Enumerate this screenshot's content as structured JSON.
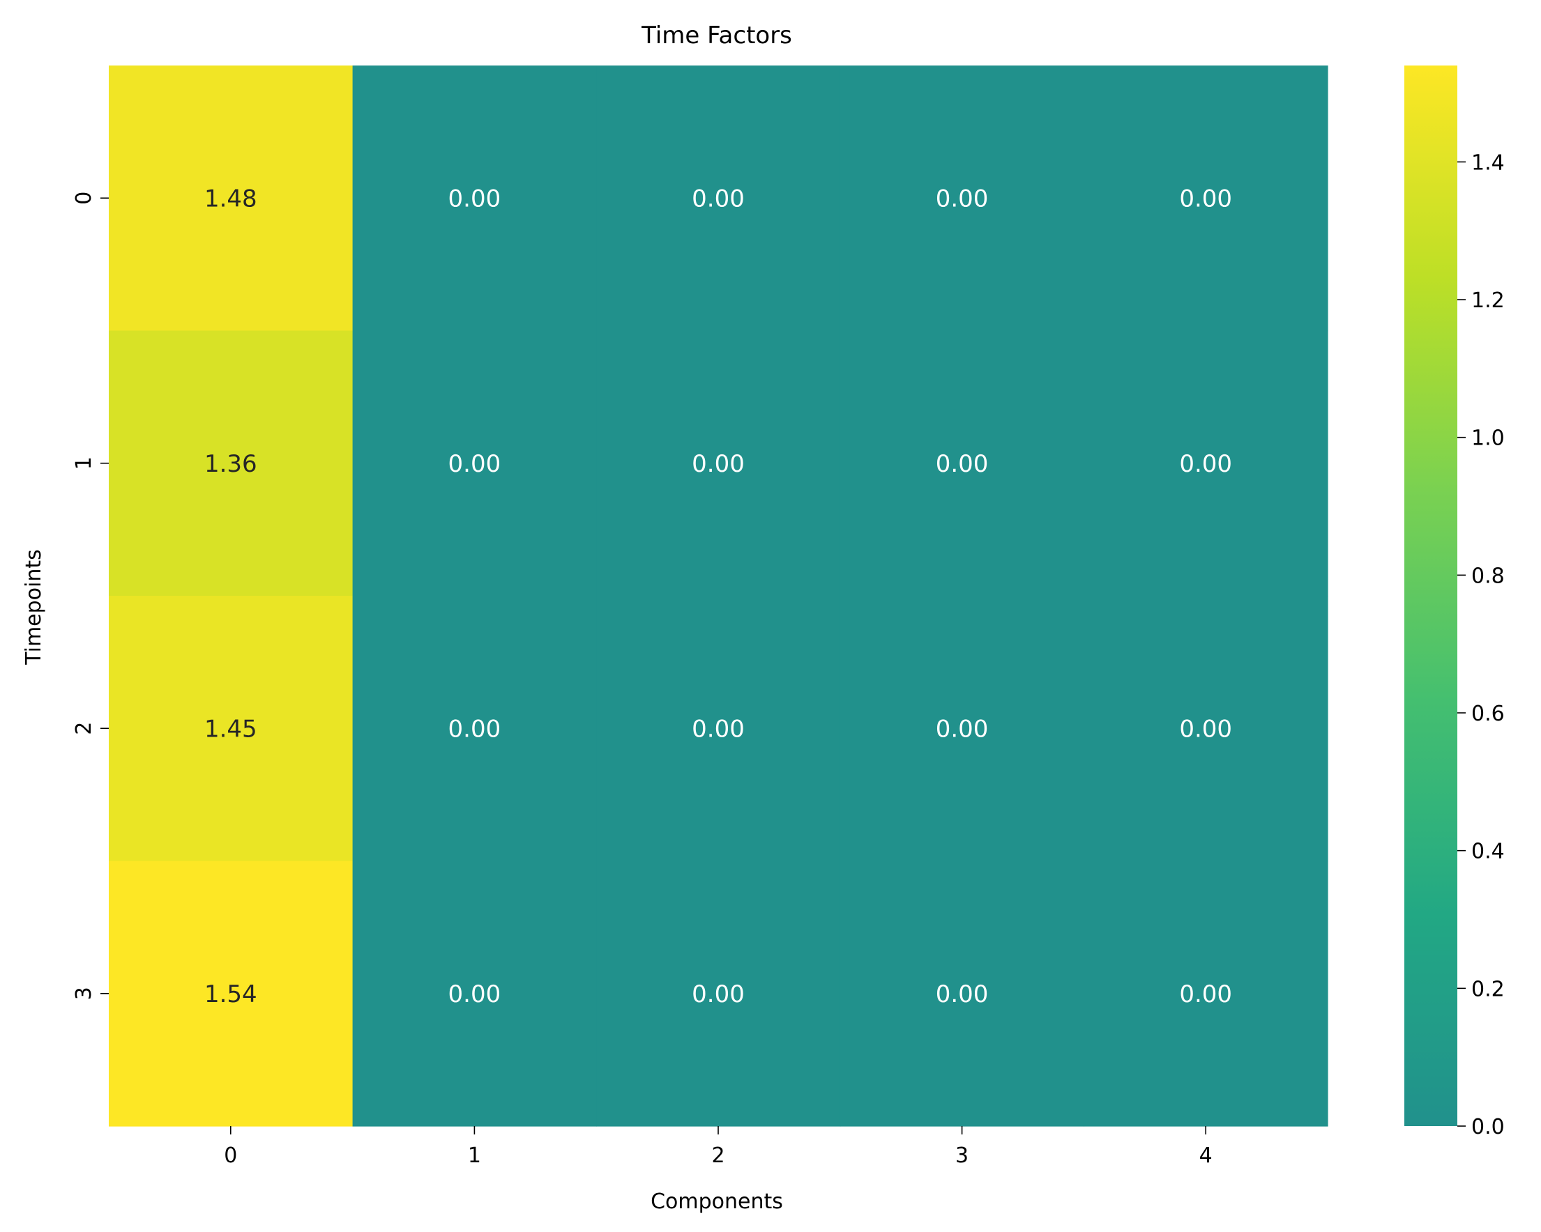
{
  "chart_data": {
    "type": "heatmap",
    "title": "Time Factors",
    "xlabel": "Components",
    "ylabel": "Timepoints",
    "x_categories": [
      "0",
      "1",
      "2",
      "3",
      "4"
    ],
    "y_categories": [
      "0",
      "1",
      "2",
      "3"
    ],
    "values": [
      [
        1.48,
        0.0,
        0.0,
        0.0,
        0.0
      ],
      [
        1.36,
        0.0,
        0.0,
        0.0,
        0.0
      ],
      [
        1.45,
        0.0,
        0.0,
        0.0,
        0.0
      ],
      [
        1.54,
        0.0,
        0.0,
        0.0,
        0.0
      ]
    ],
    "value_format_decimals": 2,
    "colormap": "viridis",
    "color_range": [
      0.0,
      1.54
    ],
    "colorbar_range": [
      0.0,
      1.54
    ],
    "colorbar_ticks": [
      "0.0",
      "0.2",
      "0.4",
      "0.6",
      "0.8",
      "1.0",
      "1.2",
      "1.4"
    ],
    "colorbar_tick_values": [
      0.0,
      0.2,
      0.4,
      0.6,
      0.8,
      1.0,
      1.2,
      1.4
    ],
    "annotation_colors": {
      "dark": "#262626",
      "light": "#ffffff"
    }
  }
}
